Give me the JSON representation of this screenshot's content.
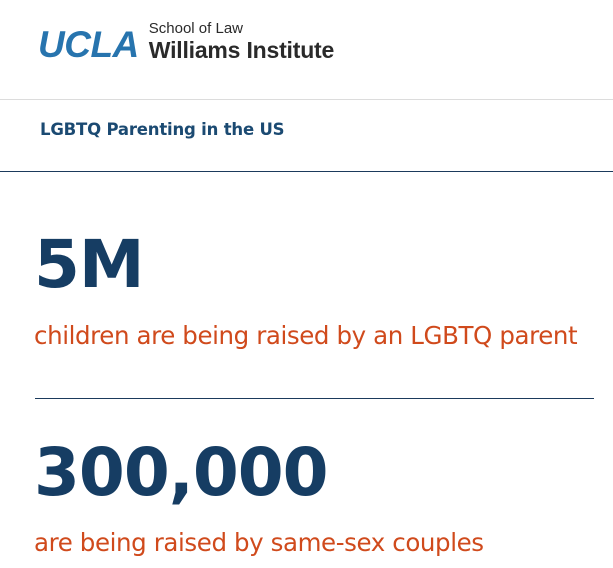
{
  "header": {
    "logo_ucla": "UCLA",
    "logo_school": "School of Law",
    "logo_institute": "Williams Institute"
  },
  "section": {
    "title": "LGBTQ Parenting in the US"
  },
  "stats": [
    {
      "number": "5M",
      "caption": "children are being raised by an LGBTQ parent"
    },
    {
      "number": "300,000",
      "caption": "are being raised by same-sex couples"
    }
  ],
  "colors": {
    "ucla_blue": "#2774ae",
    "navy": "#163d63",
    "accent_orange": "#d04a1c"
  }
}
